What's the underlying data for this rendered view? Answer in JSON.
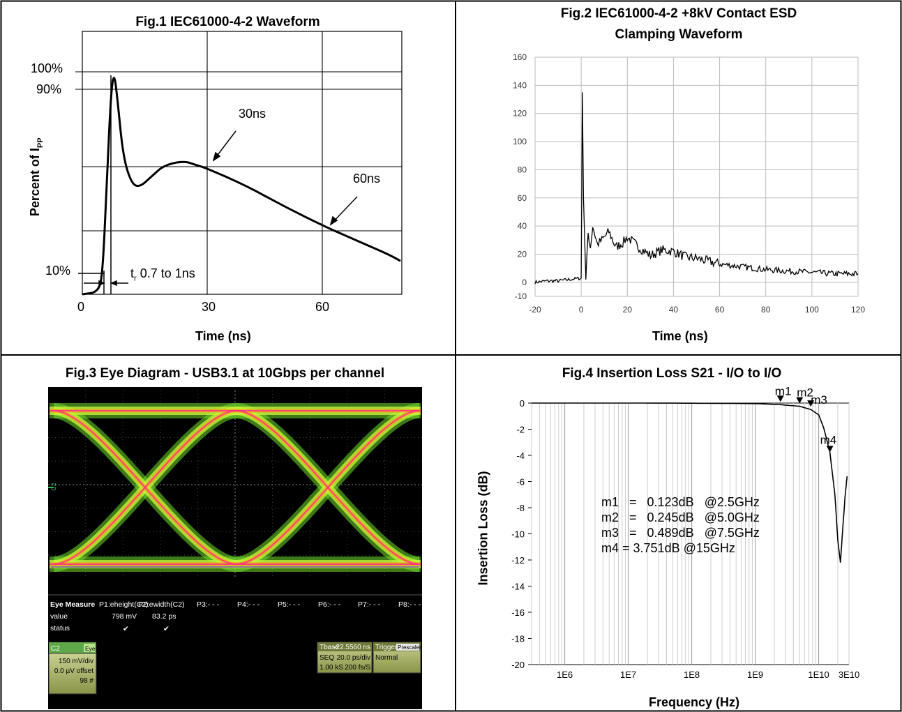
{
  "fig1": {
    "title": "Fig.1 IEC61000-4-2 Waveform",
    "ylabel_main": "Percent of I",
    "ylabel_sub": "PP",
    "xlabel": "Time (ns)",
    "ytick_labels": [
      "100%",
      "90%",
      "10%"
    ],
    "xtick_labels": [
      "0",
      "30",
      "60"
    ],
    "annotation_30": "30ns",
    "annotation_60": "60ns",
    "annotation_tr_t": "t",
    "annotation_tr_sub": "r",
    "annotation_tr_rest": " 0.7 to 1ns"
  },
  "fig2": {
    "title_line1": "Fig.2 IEC61000-4-2 +8kV Contact ESD",
    "title_line2": "Clamping Waveform",
    "xlabel": "Time (ns)"
  },
  "fig3": {
    "title": "Fig.3 Eye Diagram - USB3.1 at 10Gbps per channel",
    "scope": {
      "channel_marker": "C2",
      "measure_header": "Eye Measure",
      "p1": "P1:eheight(C2)",
      "p2": "P2:ewidth(C2)",
      "p3": "P3:- - -",
      "p4": "P4:- - -",
      "p5": "P5:- - -",
      "p6": "P6:- - -",
      "p7": "P7:- - -",
      "p8": "P8:- - -",
      "value_label": "value",
      "value1": "798 mV",
      "value2": "83.2 ps",
      "status_label": "status",
      "status1": "✔",
      "status2": "✔",
      "ch_name": "C2",
      "ch_mode": "Eye",
      "ch_vdiv": "150 mV/div",
      "ch_offset": "0.0 µV offset",
      "ch_count": "98 #",
      "tbase_label": "Tbase",
      "tbase_value": "-22.5560 ns",
      "seq_label": "SEQ",
      "seq_value": "20.0 ps/div",
      "samples": "1.00 kS",
      "rate": "200 fs/S",
      "trigger_label": "Trigger",
      "trigger_mode": "Prescaler",
      "trigger_state": "Normal"
    }
  },
  "fig4": {
    "title": "Fig.4 Insertion Loss S21 - I/O to I/O",
    "ylabel": "Insertion Loss (dB)",
    "xlabel": "Frequency (Hz)",
    "marker_labels": [
      "m1",
      "m2",
      "m3",
      "m4"
    ],
    "marker_texts": [
      "m1   =   0.123dB   @2.5GHz",
      "m2   =   0.245dB   @5.0GHz",
      "m3   =   0.489dB   @7.5GHz",
      "m4 = 3.751dB @15GHz"
    ]
  },
  "chart_data": [
    {
      "type": "line",
      "title": "Fig.1 IEC61000-4-2 Waveform",
      "xlabel": "Time (ns)",
      "ylabel": "Percent of IPP",
      "xlim": [
        0,
        78
      ],
      "ylim": [
        0,
        100
      ],
      "x": [
        0,
        4,
        5,
        6,
        7,
        7.8,
        8.6,
        10,
        12,
        14,
        17,
        20,
        25,
        28,
        30,
        40,
        50,
        60,
        65,
        70,
        75,
        78
      ],
      "y": [
        0,
        1,
        10,
        50,
        90,
        100,
        88,
        62,
        50,
        48,
        53,
        58,
        60,
        58,
        57,
        49,
        39,
        30,
        26,
        22,
        18,
        15
      ]
    },
    {
      "type": "line",
      "title": "Fig.2 IEC61000-4-2 +8kV Contact ESD Clamping Waveform",
      "xlabel": "Time (ns)",
      "ylabel": "",
      "xlim": [
        -20,
        120
      ],
      "ylim": [
        -10,
        160
      ],
      "xticks": [
        -20,
        0,
        20,
        40,
        60,
        80,
        100,
        120
      ],
      "yticks": [
        -10,
        0,
        20,
        40,
        60,
        80,
        100,
        120,
        140,
        160
      ],
      "x": [
        -20,
        -15,
        -10,
        -5,
        0,
        0.5,
        1,
        2,
        2.5,
        3,
        4,
        5,
        7,
        9,
        12,
        15,
        18,
        20,
        25,
        30,
        35,
        40,
        45,
        50,
        60,
        70,
        80,
        90,
        100,
        110,
        120
      ],
      "y": [
        0,
        1,
        1,
        2,
        3,
        135,
        60,
        2,
        20,
        35,
        25,
        40,
        27,
        30,
        36,
        25,
        28,
        32,
        25,
        19,
        23,
        22,
        18,
        17,
        13,
        11,
        9,
        8,
        7,
        6,
        6
      ]
    },
    {
      "type": "line",
      "title": "Fig.4 Insertion Loss S21 - I/O to I/O",
      "xlabel": "Frequency (Hz)",
      "ylabel": "Insertion Loss (dB)",
      "xscale": "log",
      "xlim": [
        300000,
        30000000000
      ],
      "ylim": [
        -20,
        0
      ],
      "xticks": [
        "1E6",
        "1E7",
        "1E8",
        "1E9",
        "1E10",
        "3E10"
      ],
      "yticks": [
        0,
        -2,
        -4,
        -6,
        -8,
        -10,
        -12,
        -14,
        -16,
        -18,
        -20
      ],
      "x": [
        300000,
        1000000,
        10000000,
        100000000,
        1000000000,
        2500000000,
        5000000000,
        7500000000,
        10000000000,
        12000000000,
        15000000000,
        18000000000,
        20000000000,
        22000000000,
        24000000000,
        26000000000,
        28000000000
      ],
      "y": [
        0,
        0,
        0,
        -0.01,
        -0.04,
        -0.123,
        -0.245,
        -0.489,
        -0.9,
        -1.9,
        -3.751,
        -7,
        -10.5,
        -12.2,
        -9.5,
        -7.2,
        -5.6
      ],
      "markers": [
        {
          "name": "m1",
          "x": 2500000000,
          "y": -0.123
        },
        {
          "name": "m2",
          "x": 5000000000,
          "y": -0.245
        },
        {
          "name": "m3",
          "x": 7500000000,
          "y": -0.489
        },
        {
          "name": "m4",
          "x": 15000000000,
          "y": -3.751
        }
      ]
    }
  ]
}
